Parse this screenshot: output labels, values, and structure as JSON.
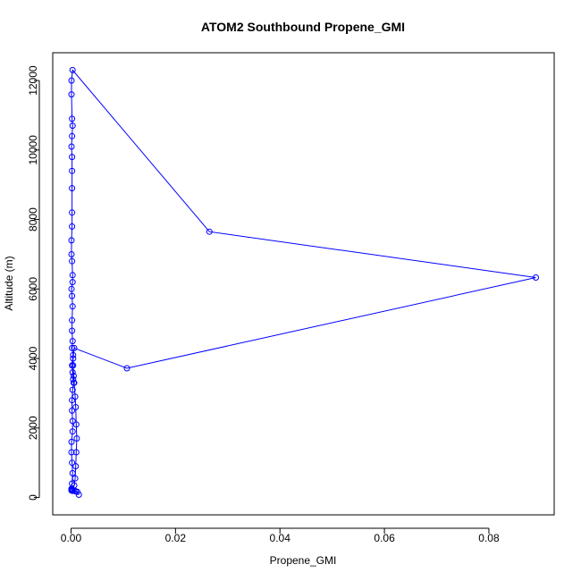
{
  "chart_data": {
    "type": "line",
    "title": "ATOM2 Southbound Propene_GMI",
    "xlabel": "Propene_GMI",
    "ylabel": "Altitude (m)",
    "xlim": [
      -0.0035,
      0.0925
    ],
    "ylim": [
      -500,
      12800
    ],
    "x_ticks": [
      0.0,
      0.02,
      0.04,
      0.06,
      0.08
    ],
    "x_tick_labels": [
      "0.00",
      "0.02",
      "0.04",
      "0.06",
      "0.08"
    ],
    "y_ticks": [
      0,
      2000,
      4000,
      6000,
      8000,
      10000,
      12000
    ],
    "y_tick_labels": [
      "0",
      "2000",
      "4000",
      "6000",
      "8000",
      "10000",
      "12000"
    ],
    "grid": false,
    "legend": "none",
    "colors": {
      "series": "#0000ff"
    },
    "series": [
      {
        "points": [
          [
            0.0015,
            80
          ],
          [
            0.0012,
            160
          ],
          [
            0.0009,
            180
          ],
          [
            0.0006,
            200
          ],
          [
            0.0003,
            210
          ],
          [
            0.0001,
            220
          ],
          [
            0.0001,
            240
          ],
          [
            0.0003,
            200
          ],
          [
            0.0006,
            350
          ],
          [
            0.0008,
            550
          ],
          [
            0.0009,
            900
          ],
          [
            0.001,
            1300
          ],
          [
            0.0011,
            1700
          ],
          [
            0.001,
            2100
          ],
          [
            0.0009,
            2600
          ],
          [
            0.0008,
            2900
          ],
          [
            0.0006,
            3300
          ],
          [
            0.0005,
            3500
          ],
          [
            0.0004,
            3800
          ],
          [
            0.0004,
            4000
          ],
          [
            0.0006,
            4300
          ],
          [
            0.0107,
            3720
          ],
          [
            0.089,
            6330
          ],
          [
            0.0265,
            7650
          ],
          [
            0.0003,
            12300
          ],
          [
            0.0001,
            12000
          ],
          [
            0.0001,
            11600
          ],
          [
            0.0002,
            10900
          ],
          [
            0.0003,
            10700
          ],
          [
            0.0002,
            10400
          ],
          [
            0.0001,
            10100
          ],
          [
            0.0002,
            9800
          ],
          [
            0.0002,
            9400
          ],
          [
            0.0002,
            8900
          ],
          [
            0.0002,
            8200
          ],
          [
            0.0002,
            7800
          ],
          [
            0.0001,
            7400
          ],
          [
            0.0001,
            7000
          ],
          [
            0.0002,
            6800
          ],
          [
            0.0003,
            6400
          ],
          [
            0.0003,
            6200
          ],
          [
            0.0001,
            6000
          ],
          [
            0.0002,
            5800
          ],
          [
            0.0003,
            5500
          ],
          [
            0.0002,
            5100
          ],
          [
            0.0002,
            4800
          ],
          [
            0.0003,
            4500
          ],
          [
            0.0002,
            4300
          ],
          [
            0.0004,
            4100
          ],
          [
            0.0002,
            3800
          ],
          [
            0.0003,
            3600
          ],
          [
            0.0004,
            3400
          ],
          [
            0.0005,
            3300
          ],
          [
            0.0003,
            3100
          ],
          [
            0.0002,
            2800
          ],
          [
            0.0002,
            2500
          ],
          [
            0.0003,
            2200
          ],
          [
            0.0003,
            1900
          ],
          [
            0.0001,
            1600
          ],
          [
            0.0001,
            1300
          ],
          [
            0.0002,
            1000
          ],
          [
            0.0003,
            700
          ],
          [
            0.0002,
            400
          ],
          [
            0.0001,
            250
          ],
          [
            0.0001,
            200
          ],
          [
            0.0003,
            190
          ],
          [
            0.0002,
            210
          ],
          [
            0.0001,
            230
          ]
        ]
      }
    ]
  }
}
